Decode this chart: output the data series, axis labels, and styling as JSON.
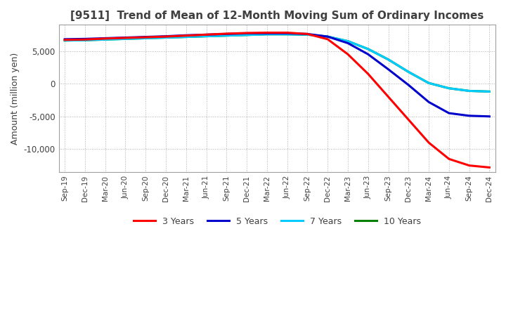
{
  "title": "[9511]  Trend of Mean of 12-Month Moving Sum of Ordinary Incomes",
  "ylabel": "Amount (million yen)",
  "title_color": "#404040",
  "background_color": "#ffffff",
  "grid_color": "#b0b0b0",
  "x_labels": [
    "Sep-19",
    "Dec-19",
    "Mar-20",
    "Jun-20",
    "Sep-20",
    "Dec-20",
    "Mar-21",
    "Jun-21",
    "Sep-21",
    "Dec-21",
    "Mar-22",
    "Jun-22",
    "Sep-22",
    "Dec-22",
    "Mar-23",
    "Jun-23",
    "Sep-23",
    "Dec-23",
    "Mar-24",
    "Jun-24",
    "Sep-24",
    "Dec-24"
  ],
  "ylim": [
    -13500,
    9000
  ],
  "yticks": [
    -10000,
    -5000,
    0,
    5000
  ],
  "series": {
    "3years": {
      "color": "#ff0000",
      "label": "3 Years",
      "values": [
        6700,
        6750,
        6900,
        7000,
        7100,
        7200,
        7350,
        7500,
        7650,
        7750,
        7800,
        7800,
        7600,
        6800,
        4500,
        1500,
        -2000,
        -5500,
        -9000,
        -11500,
        -12500,
        -12800
      ]
    },
    "5years": {
      "color": "#0000cc",
      "label": "5 Years",
      "values": [
        6800,
        6850,
        6950,
        7050,
        7150,
        7250,
        7400,
        7500,
        7600,
        7700,
        7700,
        7700,
        7600,
        7200,
        6200,
        4500,
        2200,
        -200,
        -2800,
        -4500,
        -4900,
        -5000
      ]
    },
    "7years": {
      "color": "#00ccff",
      "label": "7 Years",
      "values": [
        6600,
        6650,
        6750,
        6850,
        6950,
        7050,
        7150,
        7250,
        7350,
        7450,
        7550,
        7550,
        7500,
        7200,
        6500,
        5300,
        3700,
        1800,
        100,
        -700,
        -1100,
        -1200
      ]
    },
    "10years": {
      "color": "#008000",
      "label": "10 Years",
      "values": [
        6600,
        6650,
        6750,
        6850,
        6950,
        7050,
        7150,
        7250,
        7350,
        7450,
        7550,
        7550,
        7500,
        7200,
        6500,
        5300,
        3700,
        1800,
        100,
        -700,
        -1100,
        -1200
      ]
    }
  }
}
